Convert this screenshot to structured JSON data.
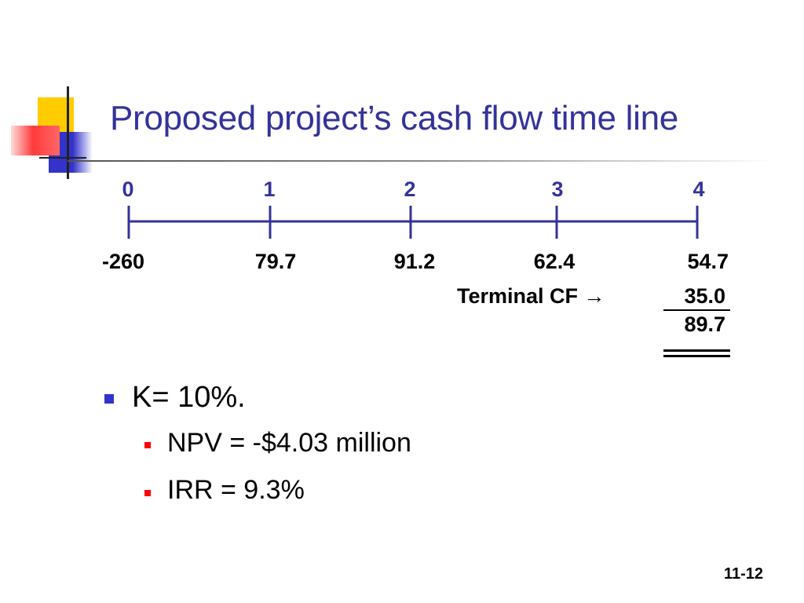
{
  "slide": {
    "title": "Proposed project’s cash flow time line",
    "number": "11-12"
  },
  "timeline": {
    "periods": [
      "0",
      "1",
      "2",
      "3",
      "4"
    ],
    "cash_flows": [
      "-260",
      "79.7",
      "91.2",
      "62.4",
      "54.7"
    ],
    "terminal_label": "Terminal CF →",
    "terminal_value": "35.0",
    "total_value": "89.7",
    "line_color": "#333399"
  },
  "bullets": {
    "main": "K= 10%.",
    "sub": [
      "NPV = -$4.03 million",
      "IRR = 9.3%"
    ]
  },
  "colors": {
    "title": "#333399",
    "bullet_l1": "#3333cc",
    "bullet_l2": "#ff0000"
  }
}
